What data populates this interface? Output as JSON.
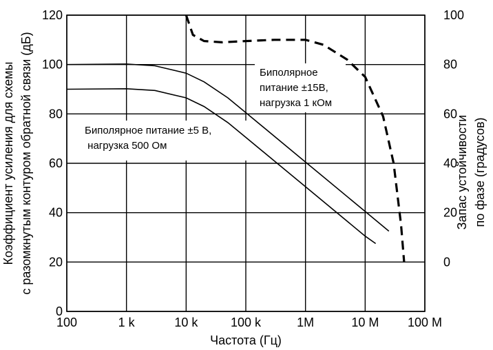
{
  "chart_data": {
    "type": "line",
    "x_scale": "log",
    "x_ticks": [
      "100",
      "1 k",
      "10 k",
      "100 k",
      "1M",
      "10 M",
      "100 M"
    ],
    "x_tick_values": [
      100,
      1000,
      10000,
      100000,
      1000000,
      10000000,
      100000000
    ],
    "xlabel": "Частота (Гц)",
    "xlim": [
      100,
      100000000
    ],
    "ylabel": "Коэффициент усиления для схемы\nс разомкнутым контуром обратной связи (дБ)",
    "ylim": [
      0,
      120
    ],
    "y_ticks": [
      0,
      20,
      40,
      60,
      80,
      100,
      120
    ],
    "y2label": "Запас устойчивости\nпо фазе (градусов)",
    "y2lim": [
      -20,
      100
    ],
    "y2_ticks": [
      0,
      20,
      40,
      60,
      80,
      100
    ],
    "grid": true,
    "series": [
      {
        "name": "Биполярное\nпитание ±15В,\nнагрузка 1 кОм",
        "axis": "left",
        "style": "solid",
        "x": [
          100,
          1000,
          3000,
          10000,
          20000,
          50000,
          100000,
          1000000,
          10000000,
          25000000
        ],
        "y": [
          100,
          100.2,
          99.5,
          96.5,
          93,
          86.5,
          80.5,
          60.5,
          40.5,
          32.5
        ]
      },
      {
        "name": "Биполярное питание ±5 В,\n нагрузка 500 Ом",
        "axis": "left",
        "style": "solid",
        "x": [
          100,
          1000,
          3000,
          10000,
          20000,
          50000,
          100000,
          1000000,
          10000000,
          15000000
        ],
        "y": [
          90,
          90.2,
          89.5,
          86.5,
          83,
          76.5,
          70.5,
          50.5,
          30.5,
          27.5
        ]
      },
      {
        "name": "",
        "axis": "right",
        "style": "dashed",
        "x": [
          10000,
          13000,
          20000,
          40000,
          100000,
          300000,
          1000000,
          2000000,
          5000000,
          10000000,
          20000000,
          30000000,
          40000000,
          45000000
        ],
        "y": [
          100,
          92,
          89.5,
          89,
          89.5,
          90,
          90,
          88,
          82,
          75,
          59,
          40,
          15,
          0
        ]
      }
    ],
    "annotations": [
      "Биполярное\nпитание ±15В,\nнагрузка 1 кОм",
      "Биполярное питание ±5 В,\n нагрузка 500 Ом"
    ]
  }
}
